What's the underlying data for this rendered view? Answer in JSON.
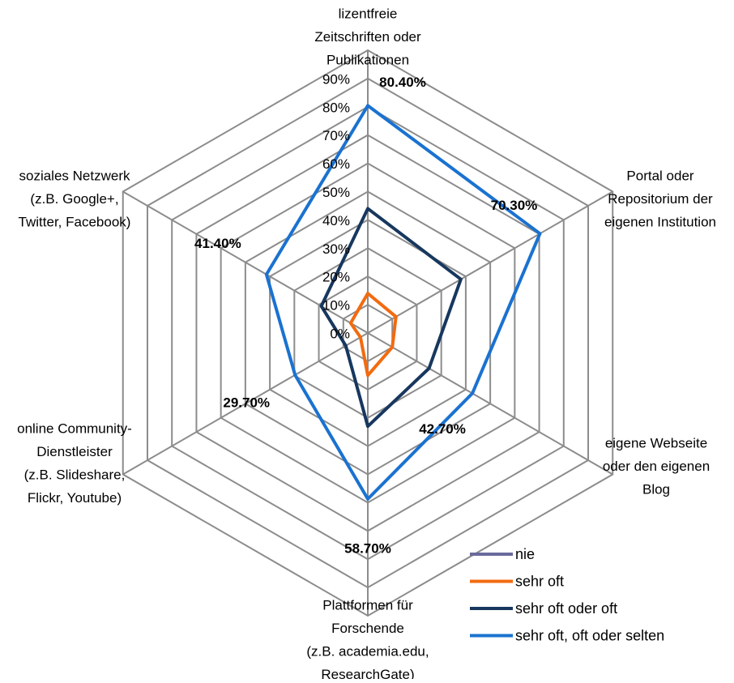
{
  "chart_data": {
    "type": "radar",
    "categories": [
      [
        "lizentfreie",
        "Zeitschriften oder",
        "Publikationen"
      ],
      [
        "Portal oder",
        "Repositorium der",
        "eigenen Institution"
      ],
      [
        "eigene Webseite",
        "oder den eigenen",
        "Blog"
      ],
      [
        "Plattformen für",
        "Forschende",
        "(z.B. academia.edu,",
        "ResearchGate)"
      ],
      [
        "online Community-",
        "Dienstleister",
        "(z.B. Slideshare,",
        "Flickr, Youtube)"
      ],
      [
        "soziales Netzwerk",
        "(z.B. Google+,",
        "Twitter, Facebook)"
      ]
    ],
    "series": [
      {
        "name": "nie",
        "color": "#6a6a9c",
        "values": [
          null,
          null,
          null,
          null,
          null,
          null
        ]
      },
      {
        "name": "sehr oft",
        "color": "#f26b10",
        "values": [
          14,
          11.5,
          10,
          15,
          3,
          7
        ]
      },
      {
        "name": "sehr oft oder oft",
        "color": "#17375e",
        "values": [
          44,
          38,
          25,
          33,
          9,
          19
        ]
      },
      {
        "name": "sehr oft, oft oder selten",
        "color": "#1a72d0",
        "values": [
          80.4,
          70.3,
          42.7,
          58.7,
          29.7,
          41.4
        ],
        "value_labels": [
          "80.40%",
          "70.30%",
          "42.70%",
          "58.70%",
          "29.70%",
          "41.40%"
        ]
      }
    ],
    "rlim": [
      0,
      100
    ],
    "rticks": [
      {
        "value": 0,
        "label": "0%"
      },
      {
        "value": 10,
        "label": "10%"
      },
      {
        "value": 20,
        "label": "20%"
      },
      {
        "value": 30,
        "label": "30%"
      },
      {
        "value": 40,
        "label": "40%"
      },
      {
        "value": 50,
        "label": "50%"
      },
      {
        "value": 60,
        "label": "60%"
      },
      {
        "value": 70,
        "label": "70%"
      },
      {
        "value": 80,
        "label": "80%"
      },
      {
        "value": 90,
        "label": "90%"
      }
    ],
    "grid": true,
    "legend": "lower right"
  }
}
